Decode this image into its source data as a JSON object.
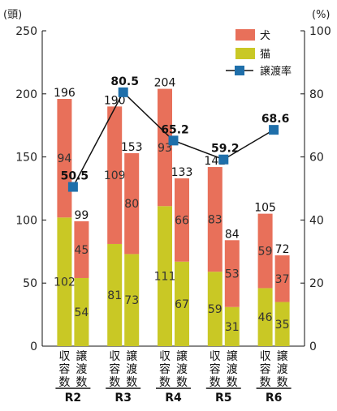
{
  "chart_data": {
    "type": "bar",
    "y_left_unit": "(頭)",
    "y_right_unit": "(%)",
    "ylim_left": [
      0,
      250
    ],
    "ylim_right": [
      0,
      100
    ],
    "y_left_ticks": [
      "0",
      "50",
      "100",
      "150",
      "200",
      "250"
    ],
    "y_right_ticks": [
      "0",
      "20",
      "40",
      "60",
      "80",
      "100"
    ],
    "years": [
      "R2",
      "R3",
      "R4",
      "R5",
      "R6"
    ],
    "bar_labels": [
      "収容数",
      "譲渡数"
    ],
    "legend": {
      "dog": "犬",
      "cat": "猫",
      "rate": "譲渡率"
    },
    "colors": {
      "dog": "#e8705a",
      "cat": "#c9c825",
      "line": "#111111",
      "marker": "#1f6faa"
    },
    "groups": [
      {
        "year": "R2",
        "intake": {
          "cat": 102,
          "dog": 94,
          "total": 196
        },
        "transfer": {
          "cat": 54,
          "dog": 45,
          "total": 99
        },
        "rate": 50.5
      },
      {
        "year": "R3",
        "intake": {
          "cat": 81,
          "dog": 109,
          "total": 190
        },
        "transfer": {
          "cat": 73,
          "dog": 80,
          "total": 153
        },
        "rate": 80.5
      },
      {
        "year": "R4",
        "intake": {
          "cat": 111,
          "dog": 93,
          "total": 204
        },
        "transfer": {
          "cat": 67,
          "dog": 66,
          "total": 133
        },
        "rate": 65.2
      },
      {
        "year": "R5",
        "intake": {
          "cat": 59,
          "dog": 83,
          "total": 142
        },
        "transfer": {
          "cat": 31,
          "dog": 53,
          "total": 84
        },
        "rate": 59.2
      },
      {
        "year": "R6",
        "intake": {
          "cat": 46,
          "dog": 59,
          "total": 105
        },
        "transfer": {
          "cat": 35,
          "dog": 37,
          "total": 72
        },
        "rate": 68.6
      }
    ]
  }
}
